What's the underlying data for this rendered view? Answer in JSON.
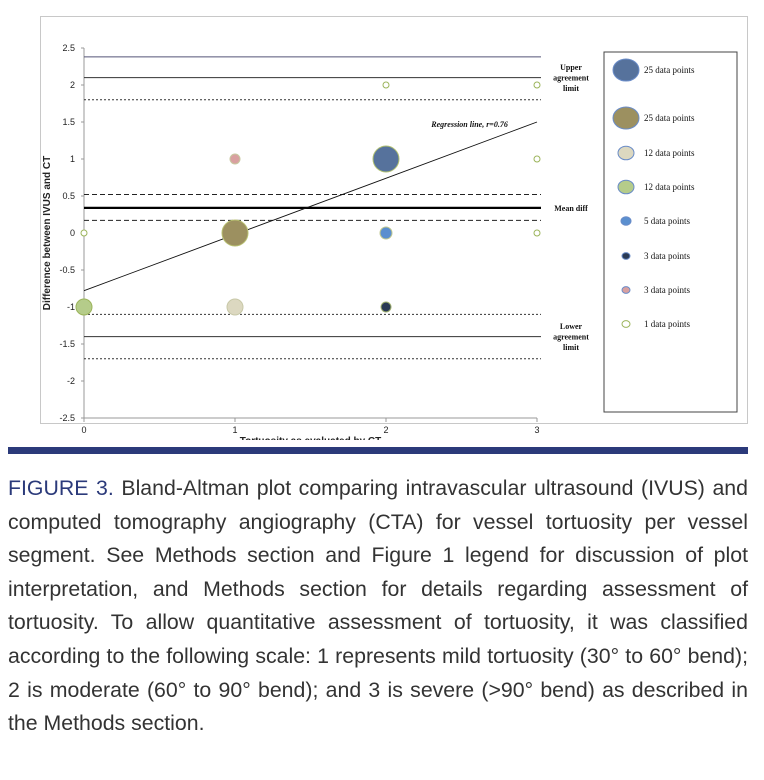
{
  "chart_data": {
    "type": "scatter",
    "xlabel": "Tortuosity as evaluated by CT",
    "ylabel": "Difference between IVUS and CT",
    "xlim": [
      0,
      3
    ],
    "ylim": [
      -2.5,
      2.5
    ],
    "xticks": [
      "0",
      "1",
      "2",
      "3"
    ],
    "yticks": [
      "2.5",
      "2",
      "1.5",
      "1",
      "0.5",
      "0",
      "-0.5",
      "-1",
      "-1.5",
      "-2",
      "-2.5"
    ],
    "grid": false,
    "legend_placement": "right",
    "points": [
      {
        "x": 0,
        "y": 0,
        "n": 1,
        "color": "#ffffff",
        "stroke": "#9bb45a"
      },
      {
        "x": 0,
        "y": -1,
        "n": 12,
        "color": "#b5cc8a",
        "stroke": "#9bb45a"
      },
      {
        "x": 1,
        "y": 1,
        "n": 3,
        "color": "#d9a0a0",
        "stroke": "#c8c8a0"
      },
      {
        "x": 1,
        "y": 0,
        "n": 25,
        "color": "#9c9060",
        "stroke": "#b8c070"
      },
      {
        "x": 1,
        "y": -1,
        "n": 12,
        "color": "#dcd8c0",
        "stroke": "#c8c8a8"
      },
      {
        "x": 2,
        "y": 2,
        "n": 1,
        "color": "#ffffff",
        "stroke": "#9bb45a"
      },
      {
        "x": 2,
        "y": 1,
        "n": 25,
        "color": "#56729c",
        "stroke": "#b0c070"
      },
      {
        "x": 2,
        "y": 0,
        "n": 5,
        "color": "#5b8fcf",
        "stroke": "#c0c890"
      },
      {
        "x": 2,
        "y": -1,
        "n": 3,
        "color": "#2a3a55",
        "stroke": "#a0b070"
      },
      {
        "x": 3,
        "y": 2,
        "n": 1,
        "color": "#ffffff",
        "stroke": "#9bb45a"
      },
      {
        "x": 3,
        "y": 1,
        "n": 1,
        "color": "#ffffff",
        "stroke": "#9bb45a"
      },
      {
        "x": 3,
        "y": 0,
        "n": 1,
        "color": "#ffffff",
        "stroke": "#9bb45a"
      }
    ],
    "hlines": [
      {
        "y": 2.38,
        "style": "solid",
        "color": "#555577"
      },
      {
        "y": 2.1,
        "style": "solid",
        "color": "#333"
      },
      {
        "y": 1.8,
        "style": "dotted",
        "color": "#333"
      },
      {
        "y": 0.52,
        "style": "dashed",
        "color": "#222"
      },
      {
        "y": 0.34,
        "style": "thick",
        "color": "#000"
      },
      {
        "y": 0.17,
        "style": "dashed",
        "color": "#222"
      },
      {
        "y": -1.1,
        "style": "dotted",
        "color": "#333"
      },
      {
        "y": -1.4,
        "style": "solid",
        "color": "#333"
      },
      {
        "y": -1.7,
        "style": "dotted",
        "color": "#333"
      }
    ],
    "regression": {
      "x": [
        0,
        3
      ],
      "y": [
        -0.78,
        1.5
      ],
      "label": "Regression line, r=0.76"
    },
    "annotations": [
      {
        "lines": [
          "Upper",
          "agreement",
          "limit"
        ],
        "y": 2.1
      },
      {
        "lines": [
          "Mean diff"
        ],
        "y": 0.34
      },
      {
        "lines": [
          "Lower",
          "agreement",
          "limit"
        ],
        "y": -1.4
      }
    ],
    "legend": [
      {
        "label": "25 data points",
        "color": "#56729c",
        "r": 13
      },
      {
        "label": "25 data points",
        "color": "#9c9060",
        "r": 13
      },
      {
        "label": "12 data points",
        "color": "#dcd8c0",
        "r": 8
      },
      {
        "label": "12 data points",
        "color": "#b5cc8a",
        "r": 8
      },
      {
        "label": "5 data points",
        "color": "#5b8fcf",
        "r": 5
      },
      {
        "label": "3 data points",
        "color": "#2a3a55",
        "r": 4
      },
      {
        "label": "3 data points",
        "color": "#d9a0a0",
        "r": 4
      },
      {
        "label": "1 data points",
        "color": "#ffffff",
        "r": 4
      }
    ]
  },
  "caption": {
    "label": "FIGURE 3.",
    "text": " Bland-Altman plot comparing intravascular ultrasound (IVUS) and computed tomography angiography (CTA) for vessel tortuosity per vessel segment. See Methods section and Figure 1 legend for discussion of plot interpretation, and Methods section for details regarding assessment of tortuosity. To allow quantitative assessment of tortuosity, it was classified according to the following scale: 1 represents mild tortuosity (30° to 60° bend); 2 is moderate (60° to 90° bend); and 3 is severe (>90° bend) as described in the Methods section."
  }
}
